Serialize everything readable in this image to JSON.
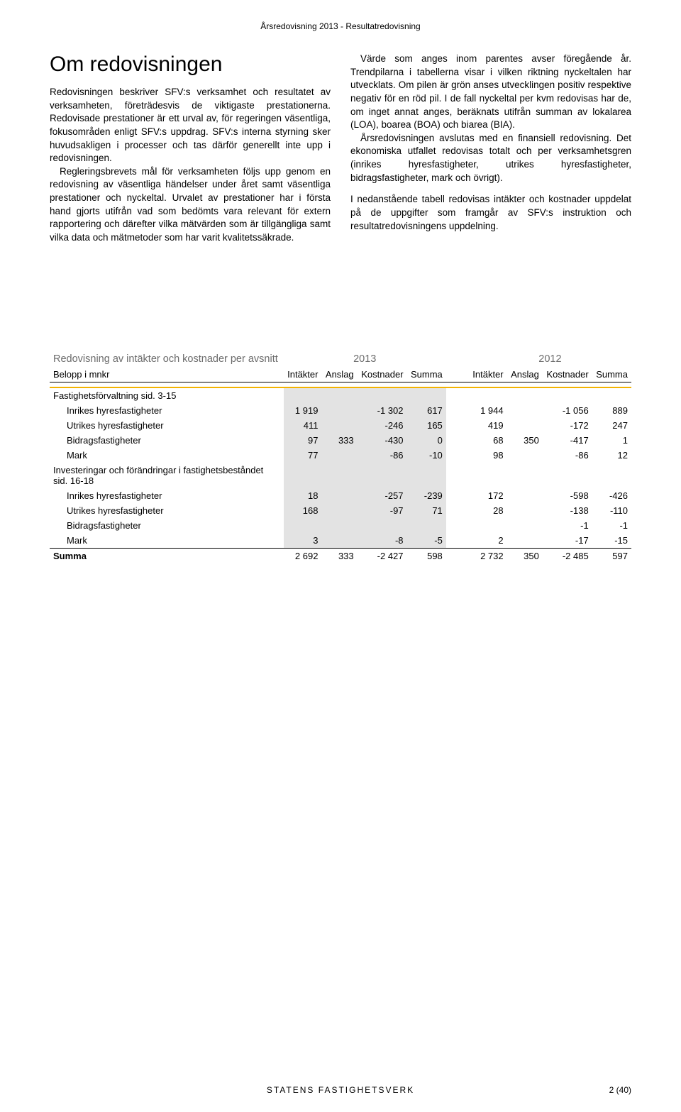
{
  "running_header": "Årsredovisning 2013 - Resultatredovisning",
  "section_title": "Om redovisningen",
  "left_col": {
    "p1": "Redovisningen beskriver SFV:s verksamhet och resultatet av verksamheten, företrädesvis de viktigaste prestationerna. Redovisade prestationer är ett urval av, för regeringen väsentliga, fokusområden enligt SFV:s uppdrag. SFV:s interna styrning sker huvudsakligen i processer och tas därför generellt inte upp i redovisningen.",
    "p2": "Regleringsbrevets mål för verksamheten följs upp genom en redovisning av väsentliga händelser under året samt väsentliga prestationer och nyckeltal. Urvalet av prestationer har i första hand gjorts utifrån vad som bedömts vara relevant för extern rapportering och därefter vilka mätvärden som är tillgängliga samt vilka data och mätmetoder som har varit kvalitetssäkrade."
  },
  "right_col": {
    "p1": "Värde som anges inom parentes avser föregående år. Trendpilarna i tabellerna visar i vilken riktning nyckeltalen har utvecklats. Om pilen är grön anses utvecklingen positiv respektive negativ för en röd pil. I de fall nyckeltal per kvm redovisas har de, om inget annat anges, beräknats utifrån summan av lokalarea (LOA), boarea (BOA) och biarea (BIA).",
    "p2": "Årsredovisningen avslutas med en finansiell redovisning. Det ekonomiska utfallet redovisas totalt och per verksamhetsgren (inrikes hyresfastigheter, utrikes hyresfastigheter, bidragsfastigheter, mark och övrigt).",
    "p3": "I nedanstående tabell redovisas intäkter och kostnader uppdelat på de uppgifter som framgår av SFV:s instruktion och resultatredovisningens uppdelning."
  },
  "table": {
    "title": "Redovisning av intäkter och kostnader per avsnitt",
    "year_a": "2013",
    "year_b": "2012",
    "unit_row": "Belopp i mnkr",
    "col_headers": {
      "intakter": "Intäkter",
      "anslag": "Anslag",
      "kostnader": "Kostnader",
      "summa": "Summa"
    },
    "group1": "Fastighetsförvaltning sid. 3-15",
    "group2": "Investeringar och förändringar i fastighetsbeståndet sid. 16-18",
    "rows_g1": [
      {
        "label": "Inrikes hyresfastigheter",
        "a": [
          "1 919",
          "",
          "-1 302",
          "617"
        ],
        "b": [
          "1 944",
          "",
          "-1 056",
          "889"
        ]
      },
      {
        "label": "Utrikes hyresfastigheter",
        "a": [
          "411",
          "",
          "-246",
          "165"
        ],
        "b": [
          "419",
          "",
          "-172",
          "247"
        ]
      },
      {
        "label": "Bidragsfastigheter",
        "a": [
          "97",
          "333",
          "-430",
          "0"
        ],
        "b": [
          "68",
          "350",
          "-417",
          "1"
        ]
      },
      {
        "label": "Mark",
        "a": [
          "77",
          "",
          "-86",
          "-10"
        ],
        "b": [
          "98",
          "",
          "-86",
          "12"
        ]
      }
    ],
    "rows_g2": [
      {
        "label": "Inrikes hyresfastigheter",
        "a": [
          "18",
          "",
          "-257",
          "-239"
        ],
        "b": [
          "172",
          "",
          "-598",
          "-426"
        ]
      },
      {
        "label": "Utrikes hyresfastigheter",
        "a": [
          "168",
          "",
          "-97",
          "71"
        ],
        "b": [
          "28",
          "",
          "-138",
          "-110"
        ]
      },
      {
        "label": "Bidragsfastigheter",
        "a": [
          "",
          "",
          "",
          " "
        ],
        "b": [
          "",
          "",
          "-1",
          "-1"
        ]
      },
      {
        "label": "Mark",
        "a": [
          "3",
          "",
          "-8",
          "-5"
        ],
        "b": [
          "2",
          "",
          "-17",
          "-15"
        ]
      }
    ],
    "sum": {
      "label": "Summa",
      "a": [
        "2 692",
        "333",
        "-2 427",
        "598"
      ],
      "b": [
        "2 732",
        "350",
        "-2 485",
        "597"
      ]
    }
  },
  "footer": {
    "center": "STATENS FASTIGHETSVERK",
    "right": "2 (40)"
  },
  "colors": {
    "accent": "#f3b300",
    "shade": "#e3e3e3",
    "muted": "#6b6b6b"
  }
}
